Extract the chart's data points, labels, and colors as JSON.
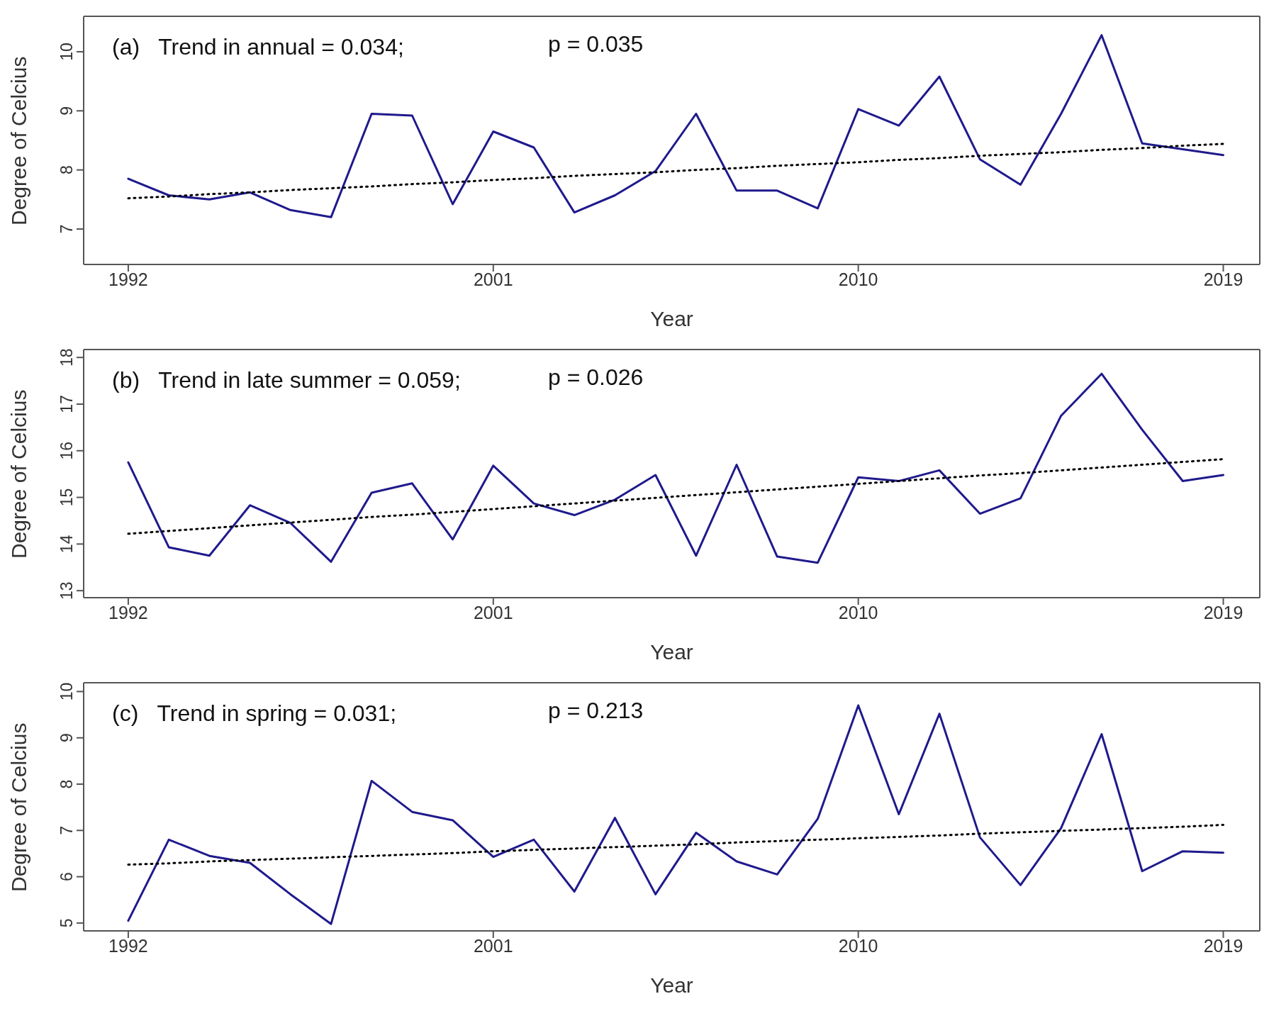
{
  "chart_data": [
    {
      "type": "line",
      "xlabel": "Year",
      "ylabel": "Degree of Celcius",
      "annotations": [
        "(a)   Trend in annual = 0.034;",
        "p = 0.035"
      ],
      "xlim": [
        1990.9,
        2019.9
      ],
      "xticks": [
        1992,
        2001,
        2010,
        2019
      ],
      "ylim": [
        6.4,
        10.6
      ],
      "yticks": [
        7,
        8,
        9,
        10
      ],
      "grid": false,
      "legend": false,
      "marker": "none",
      "x": [
        1992,
        1993,
        1994,
        1995,
        1996,
        1997,
        1998,
        1999,
        2000,
        2001,
        2002,
        2003,
        2004,
        2005,
        2006,
        2007,
        2008,
        2009,
        2010,
        2011,
        2012,
        2013,
        2014,
        2015,
        2016,
        2017,
        2018,
        2019
      ],
      "series": [
        {
          "color": "#1f1a8c",
          "line_style": "solid",
          "values": [
            7.85,
            7.57,
            7.5,
            7.62,
            7.32,
            7.2,
            8.95,
            8.92,
            7.42,
            8.65,
            8.38,
            7.28,
            7.57,
            7.98,
            8.95,
            7.65,
            7.65,
            7.35,
            9.03,
            8.75,
            9.58,
            8.18,
            7.75,
            8.95,
            10.28,
            8.45,
            8.35,
            8.25
          ]
        },
        {
          "type": "line",
          "color": "#000000",
          "line_style": "dotted",
          "values": [
            7.52,
            7.55,
            7.59,
            7.62,
            7.66,
            7.69,
            7.72,
            7.76,
            7.79,
            7.83,
            7.86,
            7.9,
            7.93,
            7.96,
            8.0,
            8.03,
            8.07,
            8.1,
            8.13,
            8.17,
            8.2,
            8.24,
            8.27,
            8.3,
            8.34,
            8.37,
            8.41,
            8.44
          ]
        }
      ]
    },
    {
      "type": "line",
      "xlabel": "Year",
      "ylabel": "Degree of Celcius",
      "annotations": [
        "(b)   Trend in late summer = 0.059;",
        "p = 0.026"
      ],
      "xlim": [
        1990.9,
        2019.9
      ],
      "xticks": [
        1992,
        2001,
        2010,
        2019
      ],
      "ylim": [
        12.85,
        18.17
      ],
      "yticks": [
        13,
        14,
        15,
        16,
        17,
        18
      ],
      "grid": false,
      "legend": false,
      "marker": "none",
      "x": [
        1992,
        1993,
        1994,
        1995,
        1996,
        1997,
        1998,
        1999,
        2000,
        2001,
        2002,
        2003,
        2004,
        2005,
        2006,
        2007,
        2008,
        2009,
        2010,
        2011,
        2012,
        2013,
        2014,
        2015,
        2016,
        2017,
        2018,
        2019
      ],
      "series": [
        {
          "color": "#1f1a8c",
          "line_style": "solid",
          "values": [
            15.75,
            13.93,
            13.75,
            14.83,
            14.45,
            13.62,
            15.1,
            15.3,
            14.1,
            15.68,
            14.87,
            14.62,
            14.95,
            15.48,
            13.75,
            15.7,
            13.73,
            13.6,
            15.43,
            15.35,
            15.58,
            14.65,
            14.98,
            16.75,
            17.65,
            16.45,
            15.35,
            15.48
          ]
        },
        {
          "type": "line",
          "color": "#000000",
          "line_style": "dotted",
          "values": [
            14.22,
            14.28,
            14.34,
            14.4,
            14.46,
            14.52,
            14.58,
            14.63,
            14.69,
            14.75,
            14.81,
            14.87,
            14.93,
            14.99,
            15.05,
            15.11,
            15.17,
            15.23,
            15.29,
            15.35,
            15.41,
            15.47,
            15.52,
            15.58,
            15.64,
            15.7,
            15.76,
            15.82
          ]
        }
      ]
    },
    {
      "type": "line",
      "xlabel": "Year",
      "ylabel": "Degree of Celcius",
      "annotations": [
        "(c)   Trend in spring = 0.031;",
        "p = 0.213"
      ],
      "xlim": [
        1990.9,
        2019.9
      ],
      "xticks": [
        1992,
        2001,
        2010,
        2019
      ],
      "ylim": [
        4.83,
        10.19
      ],
      "yticks": [
        5,
        6,
        7,
        8,
        9,
        10
      ],
      "grid": false,
      "legend": false,
      "marker": "none",
      "x": [
        1992,
        1993,
        1994,
        1995,
        1996,
        1997,
        1998,
        1999,
        2000,
        2001,
        2002,
        2003,
        2004,
        2005,
        2006,
        2007,
        2008,
        2009,
        2010,
        2011,
        2012,
        2013,
        2014,
        2015,
        2016,
        2017,
        2018,
        2019
      ],
      "series": [
        {
          "color": "#1f1a8c",
          "line_style": "solid",
          "values": [
            5.05,
            6.8,
            6.45,
            6.3,
            5.62,
            4.98,
            8.07,
            7.4,
            7.22,
            6.43,
            6.8,
            5.68,
            7.27,
            5.62,
            6.95,
            6.33,
            6.05,
            7.25,
            9.7,
            7.35,
            9.52,
            6.85,
            5.82,
            7.05,
            9.08,
            6.12,
            6.55,
            6.52
          ]
        },
        {
          "type": "line",
          "color": "#000000",
          "line_style": "dotted",
          "values": [
            6.26,
            6.29,
            6.33,
            6.36,
            6.39,
            6.42,
            6.45,
            6.48,
            6.51,
            6.55,
            6.58,
            6.61,
            6.64,
            6.67,
            6.7,
            6.74,
            6.77,
            6.8,
            6.83,
            6.86,
            6.89,
            6.93,
            6.96,
            6.99,
            7.02,
            7.05,
            7.08,
            7.12
          ]
        }
      ]
    }
  ]
}
